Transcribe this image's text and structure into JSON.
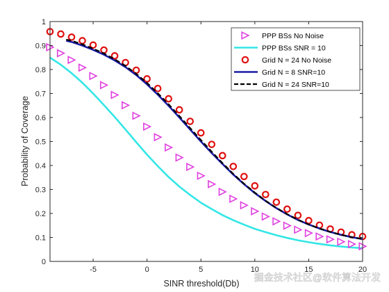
{
  "chart_data": {
    "type": "line",
    "title": "",
    "xlabel": "SINR threshold(Db)",
    "ylabel": "Probability of Coverage",
    "xlim": [
      -9,
      20
    ],
    "ylim": [
      0,
      1
    ],
    "xticks": [
      -5,
      0,
      5,
      10,
      15,
      20
    ],
    "yticks": [
      0,
      0.1,
      0.2,
      0.3,
      0.4,
      0.5,
      0.6,
      0.7,
      0.8,
      0.9,
      1
    ],
    "grid": false,
    "legend_position": "top-right",
    "series": [
      {
        "name": "PPP BSs No Noise",
        "style": "markers",
        "marker": "triangle-right",
        "color": "#e040e0",
        "x": [
          -9,
          -8,
          -7,
          -6,
          -5,
          -4,
          -3,
          -2,
          -1,
          0,
          1,
          2,
          3,
          4,
          5,
          6,
          7,
          8,
          9,
          10,
          11,
          12,
          13,
          14,
          15,
          16,
          17,
          18,
          19,
          20
        ],
        "y": [
          0.893,
          0.868,
          0.84,
          0.808,
          0.773,
          0.735,
          0.694,
          0.651,
          0.607,
          0.562,
          0.518,
          0.475,
          0.433,
          0.394,
          0.357,
          0.322,
          0.29,
          0.261,
          0.234,
          0.209,
          0.187,
          0.167,
          0.149,
          0.132,
          0.118,
          0.104,
          0.092,
          0.082,
          0.072,
          0.063
        ]
      },
      {
        "name": "PPP BSs SNR = 10",
        "style": "line",
        "color": "#33e6e6",
        "x": [
          -9,
          -8,
          -7,
          -6,
          -5,
          -4,
          -3,
          -2,
          -1,
          0,
          1,
          2,
          3,
          4,
          5,
          6,
          7,
          8,
          9,
          10,
          11,
          12,
          13,
          14,
          15,
          16,
          17,
          18,
          19,
          20
        ],
        "y": [
          0.85,
          0.82,
          0.785,
          0.745,
          0.7,
          0.652,
          0.602,
          0.55,
          0.497,
          0.445,
          0.397,
          0.352,
          0.312,
          0.277,
          0.245,
          0.218,
          0.193,
          0.172,
          0.153,
          0.136,
          0.122,
          0.109,
          0.098,
          0.088,
          0.08,
          0.073,
          0.067,
          0.062,
          0.058,
          0.055
        ]
      },
      {
        "name": "Grid N = 24 No Noise",
        "style": "markers",
        "marker": "circle",
        "color": "#e01010",
        "x": [
          -9,
          -8,
          -7,
          -6,
          -5,
          -4,
          -3,
          -2,
          -1,
          0,
          1,
          2,
          3,
          4,
          5,
          6,
          7,
          8,
          9,
          10,
          11,
          12,
          13,
          14,
          15,
          16,
          17,
          18,
          19,
          20
        ],
        "y": [
          0.958,
          0.948,
          0.935,
          0.92,
          0.902,
          0.881,
          0.857,
          0.829,
          0.797,
          0.761,
          0.721,
          0.678,
          0.632,
          0.584,
          0.536,
          0.488,
          0.441,
          0.396,
          0.354,
          0.315,
          0.279,
          0.247,
          0.218,
          0.192,
          0.17,
          0.151,
          0.135,
          0.122,
          0.111,
          0.104
        ]
      },
      {
        "name": "Grid N = 8 SNR=10",
        "style": "line",
        "color": "#1a1aa6",
        "x": [
          -7.5,
          -7,
          -6,
          -5,
          -4,
          -3,
          -2,
          -1,
          0,
          1,
          2,
          3,
          4,
          5,
          6,
          7,
          8,
          9,
          10,
          11,
          12,
          13,
          14,
          15,
          16,
          17,
          18,
          19,
          20
        ],
        "y": [
          0.92,
          0.915,
          0.9,
          0.882,
          0.862,
          0.838,
          0.81,
          0.777,
          0.738,
          0.695,
          0.649,
          0.6,
          0.55,
          0.5,
          0.452,
          0.406,
          0.362,
          0.322,
          0.285,
          0.252,
          0.222,
          0.196,
          0.173,
          0.154,
          0.137,
          0.123,
          0.111,
          0.101,
          0.093
        ]
      },
      {
        "name": "Grid N = 24 SNR=10",
        "style": "dashed",
        "color": "#000000",
        "x": [
          -7.5,
          -7,
          -6,
          -5,
          -4,
          -3,
          -2,
          -1,
          0,
          1,
          2,
          3,
          4,
          5,
          6,
          7,
          8,
          9,
          10,
          11,
          12,
          13,
          14,
          15,
          16,
          17,
          18,
          19,
          20
        ],
        "y": [
          0.925,
          0.92,
          0.905,
          0.887,
          0.867,
          0.843,
          0.815,
          0.782,
          0.744,
          0.701,
          0.655,
          0.606,
          0.556,
          0.506,
          0.457,
          0.41,
          0.365,
          0.324,
          0.287,
          0.253,
          0.223,
          0.197,
          0.174,
          0.154,
          0.137,
          0.123,
          0.111,
          0.101,
          0.093
        ]
      }
    ]
  },
  "watermark": "掘金技术社区@软件算法开发"
}
